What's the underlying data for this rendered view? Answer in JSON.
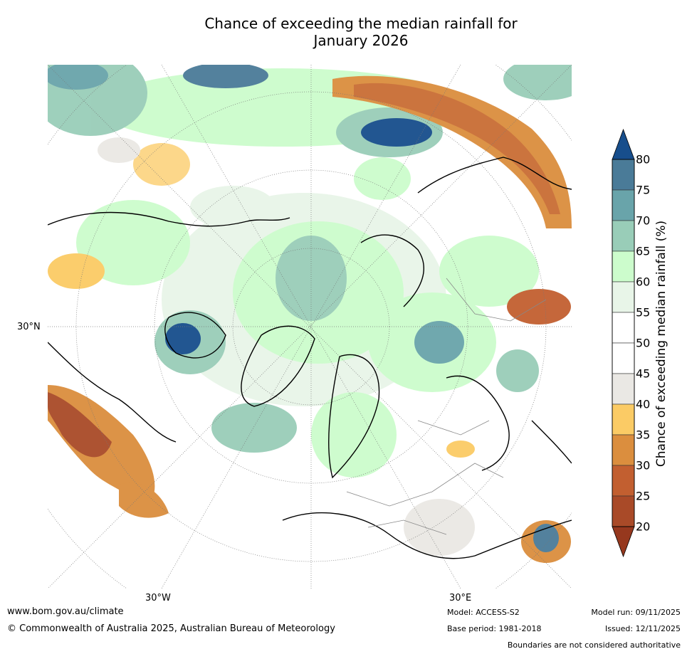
{
  "title": {
    "line1": "Chance of exceeding the median rainfall for",
    "line2": "January 2026"
  },
  "map": {
    "projection": "north-polar-stereographic",
    "labels": {
      "lon_west": "30°W",
      "lon_east": "30°E",
      "lat": "30°N"
    }
  },
  "colorbar": {
    "label": "Chance of exceeding median rainfall (%)",
    "ticks": [
      "20",
      "25",
      "30",
      "35",
      "40",
      "45",
      "50",
      "55",
      "60",
      "65",
      "70",
      "75",
      "80"
    ],
    "bins": [
      {
        "range": "<20",
        "color": "#96381e"
      },
      {
        "range": "20-25",
        "color": "#a94a28"
      },
      {
        "range": "25-30",
        "color": "#c25f30"
      },
      {
        "range": "30-35",
        "color": "#db8e3e"
      },
      {
        "range": "35-40",
        "color": "#fbcb65"
      },
      {
        "range": "40-45",
        "color": "#eae8e4"
      },
      {
        "range": "45-50",
        "color": "#ffffff"
      },
      {
        "range": "50-55",
        "color": "#ffffff"
      },
      {
        "range": "55-60",
        "color": "#e8f5e8"
      },
      {
        "range": "60-65",
        "color": "#ccfccc"
      },
      {
        "range": "65-70",
        "color": "#99cdb8"
      },
      {
        "range": "70-75",
        "color": "#69a4aa"
      },
      {
        "range": "75-80",
        "color": "#4a7b98"
      },
      {
        "range": ">80",
        "color": "#174e8c"
      }
    ]
  },
  "footer": {
    "website": "www.bom.gov.au/climate",
    "copyright": "© Commonwealth of Australia 2025, Australian Bureau of Meteorology",
    "model": "Model: ACCESS-S2",
    "base_period": "Base period: 1981-2018",
    "model_run": "Model run: 09/11/2025",
    "issued": "Issued: 12/11/2025",
    "disclaimer": "Boundaries are not considered authoritative"
  }
}
